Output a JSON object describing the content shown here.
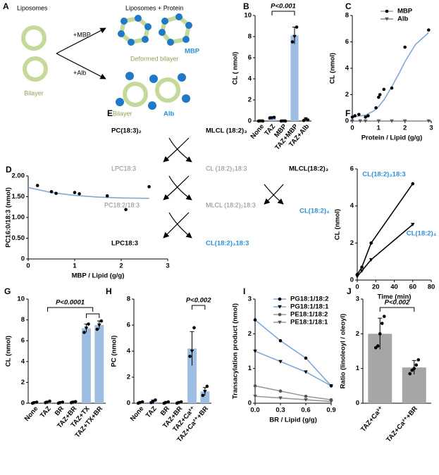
{
  "diagram_a": {
    "panel": "A",
    "labels": [
      "Liposomes",
      "Liposomes + Protein",
      "+MBP",
      "+Alb",
      "Bilayer",
      "MBP",
      "Deformed bilayer",
      "Bilayer",
      "Alb"
    ]
  },
  "diagram_e": {
    "panel": "E",
    "labels": [
      "PC(18:3)₂",
      "MLCL (18:2)₃",
      "LPC18:3",
      "CL (18:2)₃18:3",
      "MLCL(18:2)₃",
      "PC18:2/18:3",
      "MLCL (18:2)₂18:3",
      "CL(18:2)₄",
      "LPC18:3",
      "CL(18:2)₃18:3"
    ]
  },
  "chart_data": [
    {
      "panel": "B",
      "type": "bar",
      "y_label": "CL ( nmol)",
      "categories": [
        "None",
        "TAZ",
        "MBP",
        "TAZ+MBP",
        "TAZ+Alb"
      ],
      "values": [
        0,
        0.3,
        0,
        8.1,
        0.1
      ],
      "errors": [
        0,
        0.05,
        0,
        0.8,
        0.1
      ],
      "points": [
        [
          0,
          0,
          0
        ],
        [
          0.3,
          0.3,
          0.35
        ],
        [
          0,
          0,
          0
        ],
        [
          7.5,
          8.0,
          8.9
        ],
        [
          0.05,
          0.2,
          0.1
        ]
      ],
      "color": "#9dbde2",
      "ylim": [
        0,
        10
      ],
      "yticks": [
        0,
        2,
        4,
        6,
        8,
        10
      ],
      "annotation": "P<0.001"
    },
    {
      "panel": "C",
      "type": "scatter",
      "x_label": "Protein / Lipid (g/g)",
      "y_label": "CL (nmol)",
      "series": [
        {
          "name": "MBP",
          "color": "#7fa8d8",
          "marker_color": "#000",
          "marker": "circle",
          "line": false,
          "x": [
            0,
            0.1,
            0.25,
            0.5,
            0.6,
            0.9,
            1.0,
            1.05,
            1.2,
            1.5,
            2.0,
            2.9
          ],
          "values": [
            0.3,
            0.4,
            0.5,
            0.3,
            0.4,
            1.0,
            1.8,
            2.0,
            2.4,
            2.5,
            5.6,
            6.9
          ]
        },
        {
          "name": "Alb",
          "color": "#888888",
          "marker_color": "#555555",
          "marker": "triangle",
          "line": true,
          "x": [
            0,
            0.3,
            0.5,
            1.0,
            1.5,
            2.0,
            2.9
          ],
          "values": [
            0,
            0,
            0,
            0,
            0,
            0,
            0
          ]
        }
      ],
      "fit": {
        "color": "#7fa8d8",
        "x": [
          0,
          0.5,
          0.8,
          1.0,
          1.2,
          1.5,
          1.8,
          2.0,
          2.4,
          2.9
        ],
        "values": [
          0.3,
          0.45,
          0.75,
          1.1,
          1.6,
          2.6,
          3.7,
          4.5,
          5.8,
          6.7
        ]
      },
      "xlim": [
        0,
        3
      ],
      "xticks": [
        0,
        1,
        2,
        3
      ],
      "ylim": [
        0,
        8
      ],
      "yticks": [
        0,
        2,
        4,
        6,
        8
      ],
      "legend": "upper right"
    },
    {
      "panel": "D",
      "type": "scatter",
      "x_label": "MBP / Lipid (g/g)",
      "y_label": "PC16:0/18:3 (nmol)",
      "series": [
        {
          "color": "#000",
          "marker_color": "#000",
          "marker": "circle",
          "line": false,
          "x": [
            0.2,
            0.5,
            0.6,
            1.0,
            1.1,
            1.7,
            2.1,
            2.6
          ],
          "values": [
            1.77,
            1.62,
            1.58,
            1.6,
            1.57,
            1.52,
            1.19,
            1.74
          ]
        }
      ],
      "fit": {
        "color": "#7fa8d8",
        "x": [
          0,
          0.5,
          1.0,
          1.5,
          2.0,
          2.6
        ],
        "values": [
          1.72,
          1.6,
          1.53,
          1.49,
          1.47,
          1.46
        ]
      },
      "xlim": [
        0,
        3
      ],
      "xticks": [
        0,
        1,
        2,
        3
      ],
      "ylim": [
        0,
        2
      ],
      "yticks": [
        0,
        {
          "value": 0.5,
          "label": "0.50"
        },
        {
          "value": 1,
          "label": "1.00"
        },
        {
          "value": 1.5,
          "label": "1.50"
        },
        {
          "value": 2,
          "label": "2.00"
        }
      ]
    },
    {
      "panel": "F",
      "type": "line",
      "x_label": "Time (min)",
      "y_label": "CL (nmol)",
      "series": [
        {
          "name": "CL(18:2)₃18:3",
          "color": "#000",
          "marker_color": "#000",
          "marker": "circle",
          "line": true,
          "x": [
            0,
            5,
            15,
            60
          ],
          "values": [
            0.3,
            0.7,
            2.0,
            5.2
          ]
        },
        {
          "name": "CL(18:2)₄",
          "color": "#000",
          "marker_color": "#000",
          "marker": "triangle",
          "line": true,
          "x": [
            0,
            5,
            15,
            60
          ],
          "values": [
            0.2,
            0.5,
            1.1,
            3.0
          ]
        }
      ],
      "xlim": [
        0,
        80
      ],
      "xticks": [
        0,
        20,
        40,
        60,
        80
      ],
      "ylim": [
        0,
        6
      ],
      "yticks": [
        0,
        2,
        4,
        6
      ],
      "legend": "inline"
    },
    {
      "panel": "G",
      "type": "bar",
      "y_label": "CL (nmol)",
      "categories": [
        "None",
        "TAZ",
        "BR",
        "TAZ+BR",
        "TAZ+TX",
        "TAZ+TX+BR"
      ],
      "values": [
        0.05,
        0.1,
        0.05,
        0.1,
        7.2,
        7.5
      ],
      "errors": [
        0.05,
        0.1,
        0.05,
        0.05,
        0.4,
        0.4
      ],
      "points": [
        [
          0,
          0.05,
          0.1
        ],
        [
          0.05,
          0.1,
          0.2
        ],
        [
          0,
          0.05,
          0.1
        ],
        [
          0.05,
          0.1,
          0.15
        ],
        [
          6.8,
          7.2,
          7.6
        ],
        [
          7.1,
          7.5,
          7.9
        ]
      ],
      "color": "#9dbde2",
      "ylim": [
        0,
        10
      ],
      "yticks": [
        0,
        2,
        4,
        6,
        8,
        10
      ],
      "annotation": "P<0.0001"
    },
    {
      "panel": "H",
      "type": "bar",
      "y_label": "PC (nmol)",
      "categories": [
        "None",
        "TAZ",
        "BR",
        "TAZ+BR",
        "TAZ+Ca²⁺",
        "TAZ+Ca²⁺+BR"
      ],
      "values": [
        0.05,
        0.1,
        0.05,
        0.05,
        4.2,
        0.9
      ],
      "errors": [
        0.05,
        0.15,
        0.05,
        0.05,
        1.3,
        0.3
      ],
      "points": [
        [
          0,
          0.05,
          0.1
        ],
        [
          0.05,
          0.1,
          0.25
        ],
        [
          0,
          0.05,
          0.1
        ],
        [
          0,
          0.05,
          0.1
        ],
        [
          3.6,
          4.0,
          5.8
        ],
        [
          0.6,
          0.9,
          1.3
        ]
      ],
      "color": "#9dbde2",
      "ylim": [
        0,
        8
      ],
      "yticks": [
        0,
        2,
        4,
        6,
        8
      ],
      "annotation": "P<0.002"
    },
    {
      "panel": "I",
      "type": "line",
      "x_label": "BR / Lipid (g/g)",
      "y_label": "Transacylation product (nmol)",
      "series": [
        {
          "name": "PG18:1/18:2",
          "color": "#7fa8d8",
          "marker_color": "#000",
          "marker": "circle",
          "line": true,
          "x": [
            0,
            0.3,
            0.6,
            0.9
          ],
          "values": [
            2.4,
            1.8,
            1.3,
            0.5
          ]
        },
        {
          "name": "PG18:1/18:1",
          "color": "#7fa8d8",
          "marker_color": "#000",
          "marker": "triangle",
          "line": true,
          "x": [
            0,
            0.3,
            0.6,
            0.9
          ],
          "values": [
            1.5,
            1.2,
            0.9,
            0.5
          ]
        },
        {
          "name": "PE18:1/18:2",
          "color": "#999999",
          "marker_color": "#555555",
          "marker": "circle",
          "line": true,
          "x": [
            0,
            0.3,
            0.6,
            0.9
          ],
          "values": [
            0.5,
            0.35,
            0.2,
            0.1
          ]
        },
        {
          "name": "PE18:1/18:1",
          "color": "#999999",
          "marker_color": "#555555",
          "marker": "triangle",
          "line": true,
          "x": [
            0,
            0.3,
            0.6,
            0.9
          ],
          "values": [
            0.2,
            0.15,
            0.1,
            0.05
          ]
        }
      ],
      "xlim": [
        0,
        0.9
      ],
      "xticks": [
        {
          "value": 0,
          "label": "0.0"
        },
        0.3,
        0.6,
        0.9
      ],
      "ylim": [
        0,
        3
      ],
      "yticks": [
        0,
        1,
        2,
        3
      ],
      "legend": "upper right"
    },
    {
      "panel": "J",
      "type": "bar",
      "y_label": "Ratio (linoleoyl / oleoyl)",
      "categories": [
        "TAZ+Ca²⁺",
        "TAZ+Ca²⁺+BR"
      ],
      "values": [
        2.0,
        1.03
      ],
      "errors": [
        0.45,
        0.2
      ],
      "points": [
        [
          1.6,
          1.65,
          2.0,
          2.3,
          2.5
        ],
        [
          0.85,
          0.95,
          1.0,
          1.1,
          1.25
        ]
      ],
      "color": "#a6a6a6",
      "ylim": [
        0,
        3
      ],
      "yticks": [
        0,
        1,
        2,
        3
      ],
      "annotation": "P<0.002"
    }
  ]
}
